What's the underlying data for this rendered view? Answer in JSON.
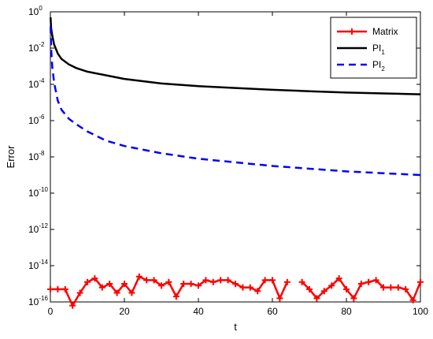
{
  "chart_data": {
    "type": "line",
    "xlabel": "t",
    "ylabel": "Error",
    "xlim": [
      0,
      100
    ],
    "ylim_log10": [
      -16,
      0
    ],
    "y_scale": "log",
    "x_ticks": [
      0,
      20,
      40,
      60,
      80,
      100
    ],
    "x_tick_labels": [
      "0",
      "20",
      "40",
      "60",
      "80",
      "100"
    ],
    "y_tick_exponents": [
      0,
      -2,
      -4,
      -6,
      -8,
      -10,
      -12,
      -14,
      -16
    ],
    "y_tick_labels": [
      {
        "base": "10",
        "exp": "0"
      },
      {
        "base": "10",
        "exp": "-2"
      },
      {
        "base": "10",
        "exp": "-4"
      },
      {
        "base": "10",
        "exp": "-6"
      },
      {
        "base": "10",
        "exp": "-8"
      },
      {
        "base": "10",
        "exp": "-10"
      },
      {
        "base": "10",
        "exp": "-12"
      },
      {
        "base": "10",
        "exp": "-14"
      },
      {
        "base": "10",
        "exp": "-16"
      }
    ],
    "grid": false,
    "legend_placement": "top-right",
    "legend": [
      {
        "label": "Matrix",
        "sub": ""
      },
      {
        "label": "PI",
        "sub": "1"
      },
      {
        "label": "PI",
        "sub": "2"
      }
    ],
    "series": [
      {
        "label": "Matrix",
        "color": "#ff0000",
        "style": "solid-plus",
        "x": [
          0,
          2,
          4,
          6,
          8,
          10,
          12,
          14,
          16,
          18,
          20,
          22,
          24,
          26,
          28,
          30,
          32,
          34,
          36,
          38,
          40,
          42,
          44,
          46,
          48,
          50,
          52,
          54,
          56,
          58,
          60,
          62,
          64,
          66,
          68,
          70,
          72,
          74,
          76,
          78,
          80,
          82,
          84,
          86,
          88,
          90,
          92,
          94,
          96,
          98,
          100
        ],
        "log10_y": [
          -15.3,
          -15.3,
          -15.3,
          -16.2,
          -15.5,
          -14.9,
          -14.7,
          -15.2,
          -15.0,
          -15.5,
          -15.0,
          -15.5,
          -14.6,
          -14.8,
          -14.8,
          -15.1,
          -14.9,
          -15.7,
          -15.0,
          -15.0,
          -15.1,
          -14.8,
          -14.9,
          -14.8,
          -14.8,
          -15.0,
          -15.2,
          -15.2,
          -15.4,
          -14.8,
          -14.8,
          -15.8,
          -14.9,
          null,
          -14.9,
          -15.3,
          -15.8,
          -15.4,
          -15.1,
          -14.7,
          -15.3,
          -15.8,
          -15.0,
          -14.9,
          -14.8,
          -15.2,
          -15.2,
          -15.2,
          -15.3,
          -15.9,
          -14.9
        ]
      },
      {
        "label": "PI_1",
        "color": "#000000",
        "style": "solid",
        "x": [
          0.05,
          0.2,
          0.5,
          1,
          2,
          3,
          5,
          7,
          10,
          15,
          20,
          30,
          40,
          50,
          60,
          70,
          80,
          90,
          100
        ],
        "log10_y": [
          -0.3,
          -0.9,
          -1.3,
          -1.8,
          -2.3,
          -2.6,
          -2.9,
          -3.1,
          -3.3,
          -3.5,
          -3.7,
          -3.95,
          -4.1,
          -4.2,
          -4.3,
          -4.38,
          -4.45,
          -4.5,
          -4.55
        ]
      },
      {
        "label": "PI_2",
        "color": "#0000ff",
        "style": "dashed",
        "x": [
          0.05,
          0.2,
          0.5,
          1,
          2,
          3,
          5,
          7,
          10,
          15,
          20,
          30,
          40,
          50,
          60,
          70,
          80,
          90,
          100
        ],
        "log10_y": [
          -0.8,
          -2.0,
          -3.0,
          -3.9,
          -4.9,
          -5.4,
          -5.9,
          -6.2,
          -6.6,
          -7.1,
          -7.4,
          -7.8,
          -8.1,
          -8.3,
          -8.5,
          -8.65,
          -8.8,
          -8.9,
          -9.0
        ]
      }
    ]
  }
}
